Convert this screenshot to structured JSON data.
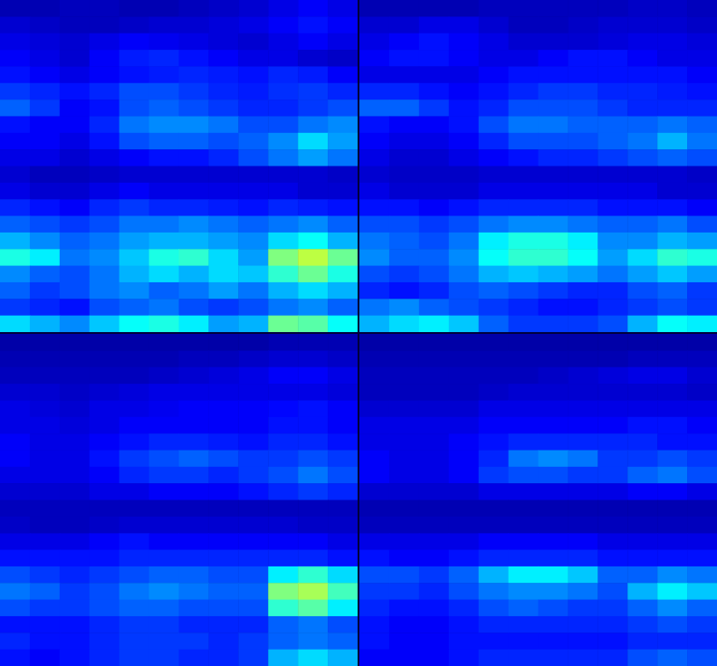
{
  "chart_data": [
    {
      "type": "heatmap",
      "tick_labels": false,
      "color_range": [
        0,
        1
      ],
      "cells": [
        [
          0.05,
          0.05,
          0.06,
          0.06,
          0.05,
          0.05,
          0.06,
          0.07,
          0.08,
          0.1,
          0.12,
          0.1
        ],
        [
          0.08,
          0.07,
          0.06,
          0.06,
          0.07,
          0.08,
          0.08,
          0.09,
          0.1,
          0.12,
          0.14,
          0.12
        ],
        [
          0.1,
          0.09,
          0.08,
          0.1,
          0.12,
          0.11,
          0.1,
          0.09,
          0.08,
          0.1,
          0.12,
          0.1
        ],
        [
          0.12,
          0.1,
          0.08,
          0.12,
          0.15,
          0.16,
          0.14,
          0.12,
          0.1,
          0.1,
          0.08,
          0.07
        ],
        [
          0.14,
          0.12,
          0.1,
          0.12,
          0.14,
          0.15,
          0.16,
          0.15,
          0.14,
          0.16,
          0.15,
          0.12
        ],
        [
          0.18,
          0.16,
          0.14,
          0.16,
          0.2,
          0.2,
          0.18,
          0.16,
          0.15,
          0.17,
          0.18,
          0.16
        ],
        [
          0.22,
          0.18,
          0.12,
          0.14,
          0.2,
          0.22,
          0.2,
          0.18,
          0.16,
          0.16,
          0.18,
          0.2
        ],
        [
          0.14,
          0.12,
          0.12,
          0.16,
          0.24,
          0.26,
          0.26,
          0.24,
          0.2,
          0.2,
          0.24,
          0.26
        ],
        [
          0.12,
          0.12,
          0.1,
          0.14,
          0.2,
          0.22,
          0.22,
          0.2,
          0.22,
          0.26,
          0.34,
          0.28
        ],
        [
          0.1,
          0.1,
          0.08,
          0.1,
          0.12,
          0.14,
          0.14,
          0.16,
          0.2,
          0.24,
          0.28,
          0.24
        ],
        [
          0.08,
          0.06,
          0.06,
          0.07,
          0.08,
          0.08,
          0.08,
          0.08,
          0.08,
          0.08,
          0.08,
          0.07
        ],
        [
          0.1,
          0.08,
          0.08,
          0.1,
          0.12,
          0.1,
          0.1,
          0.1,
          0.1,
          0.1,
          0.08,
          0.08
        ],
        [
          0.16,
          0.14,
          0.12,
          0.16,
          0.18,
          0.16,
          0.16,
          0.15,
          0.14,
          0.16,
          0.15,
          0.14
        ],
        [
          0.22,
          0.2,
          0.18,
          0.2,
          0.24,
          0.24,
          0.26,
          0.24,
          0.22,
          0.24,
          0.26,
          0.22
        ],
        [
          0.3,
          0.26,
          0.22,
          0.24,
          0.28,
          0.3,
          0.3,
          0.28,
          0.26,
          0.34,
          0.38,
          0.3
        ],
        [
          0.4,
          0.36,
          0.24,
          0.26,
          0.32,
          0.4,
          0.42,
          0.34,
          0.28,
          0.5,
          0.56,
          0.48
        ],
        [
          0.26,
          0.22,
          0.2,
          0.24,
          0.3,
          0.34,
          0.3,
          0.34,
          0.32,
          0.42,
          0.48,
          0.4
        ],
        [
          0.22,
          0.18,
          0.2,
          0.24,
          0.26,
          0.22,
          0.24,
          0.28,
          0.24,
          0.3,
          0.34,
          0.3
        ],
        [
          0.18,
          0.16,
          0.14,
          0.2,
          0.22,
          0.24,
          0.2,
          0.18,
          0.2,
          0.24,
          0.26,
          0.22
        ],
        [
          0.34,
          0.3,
          0.26,
          0.32,
          0.38,
          0.4,
          0.36,
          0.28,
          0.3,
          0.48,
          0.46,
          0.38
        ]
      ]
    },
    {
      "type": "heatmap",
      "tick_labels": false,
      "color_range": [
        0,
        1
      ],
      "cells": [
        [
          0.05,
          0.05,
          0.05,
          0.05,
          0.06,
          0.06,
          0.06,
          0.06,
          0.06,
          0.07,
          0.07,
          0.06
        ],
        [
          0.08,
          0.08,
          0.1,
          0.1,
          0.08,
          0.06,
          0.06,
          0.07,
          0.08,
          0.08,
          0.08,
          0.07
        ],
        [
          0.1,
          0.12,
          0.14,
          0.12,
          0.1,
          0.08,
          0.08,
          0.08,
          0.09,
          0.1,
          0.1,
          0.09
        ],
        [
          0.12,
          0.14,
          0.14,
          0.12,
          0.1,
          0.1,
          0.12,
          0.14,
          0.14,
          0.12,
          0.1,
          0.1
        ],
        [
          0.1,
          0.1,
          0.1,
          0.1,
          0.12,
          0.14,
          0.14,
          0.14,
          0.14,
          0.14,
          0.14,
          0.12
        ],
        [
          0.16,
          0.16,
          0.14,
          0.12,
          0.14,
          0.16,
          0.18,
          0.18,
          0.16,
          0.16,
          0.15,
          0.14
        ],
        [
          0.22,
          0.22,
          0.18,
          0.14,
          0.16,
          0.2,
          0.2,
          0.2,
          0.18,
          0.16,
          0.16,
          0.16
        ],
        [
          0.14,
          0.12,
          0.12,
          0.14,
          0.2,
          0.24,
          0.24,
          0.22,
          0.22,
          0.22,
          0.24,
          0.22
        ],
        [
          0.12,
          0.1,
          0.1,
          0.12,
          0.16,
          0.2,
          0.2,
          0.2,
          0.22,
          0.24,
          0.3,
          0.24
        ],
        [
          0.1,
          0.08,
          0.08,
          0.1,
          0.12,
          0.14,
          0.16,
          0.16,
          0.18,
          0.2,
          0.22,
          0.2
        ],
        [
          0.08,
          0.07,
          0.07,
          0.07,
          0.08,
          0.08,
          0.08,
          0.08,
          0.08,
          0.08,
          0.08,
          0.07
        ],
        [
          0.1,
          0.08,
          0.08,
          0.08,
          0.1,
          0.1,
          0.1,
          0.1,
          0.1,
          0.1,
          0.08,
          0.08
        ],
        [
          0.14,
          0.14,
          0.12,
          0.14,
          0.16,
          0.16,
          0.16,
          0.16,
          0.14,
          0.14,
          0.14,
          0.12
        ],
        [
          0.2,
          0.2,
          0.18,
          0.2,
          0.24,
          0.26,
          0.26,
          0.24,
          0.22,
          0.22,
          0.24,
          0.2
        ],
        [
          0.24,
          0.22,
          0.2,
          0.24,
          0.36,
          0.4,
          0.4,
          0.36,
          0.26,
          0.26,
          0.3,
          0.28
        ],
        [
          0.26,
          0.22,
          0.22,
          0.26,
          0.38,
          0.42,
          0.42,
          0.38,
          0.28,
          0.34,
          0.42,
          0.4
        ],
        [
          0.2,
          0.18,
          0.2,
          0.24,
          0.3,
          0.32,
          0.3,
          0.28,
          0.24,
          0.28,
          0.32,
          0.28
        ],
        [
          0.16,
          0.14,
          0.16,
          0.2,
          0.22,
          0.2,
          0.18,
          0.16,
          0.16,
          0.2,
          0.22,
          0.18
        ],
        [
          0.24,
          0.26,
          0.22,
          0.2,
          0.18,
          0.16,
          0.14,
          0.14,
          0.16,
          0.18,
          0.2,
          0.18
        ],
        [
          0.3,
          0.34,
          0.36,
          0.32,
          0.22,
          0.18,
          0.18,
          0.18,
          0.2,
          0.3,
          0.38,
          0.36
        ]
      ]
    },
    {
      "type": "heatmap",
      "tick_labels": false,
      "color_range": [
        0,
        1
      ],
      "cells": [
        [
          0.04,
          0.04,
          0.04,
          0.04,
          0.04,
          0.04,
          0.04,
          0.04,
          0.04,
          0.05,
          0.05,
          0.05
        ],
        [
          0.05,
          0.05,
          0.05,
          0.05,
          0.05,
          0.05,
          0.06,
          0.06,
          0.07,
          0.08,
          0.08,
          0.07
        ],
        [
          0.06,
          0.06,
          0.06,
          0.06,
          0.06,
          0.07,
          0.08,
          0.09,
          0.1,
          0.12,
          0.12,
          0.1
        ],
        [
          0.08,
          0.08,
          0.07,
          0.08,
          0.09,
          0.1,
          0.1,
          0.1,
          0.1,
          0.1,
          0.1,
          0.09
        ],
        [
          0.1,
          0.09,
          0.08,
          0.1,
          0.1,
          0.11,
          0.12,
          0.12,
          0.12,
          0.13,
          0.14,
          0.12
        ],
        [
          0.1,
          0.1,
          0.09,
          0.1,
          0.12,
          0.12,
          0.12,
          0.12,
          0.12,
          0.14,
          0.14,
          0.12
        ],
        [
          0.12,
          0.1,
          0.1,
          0.12,
          0.14,
          0.16,
          0.16,
          0.15,
          0.14,
          0.16,
          0.16,
          0.14
        ],
        [
          0.12,
          0.1,
          0.1,
          0.14,
          0.18,
          0.2,
          0.22,
          0.2,
          0.18,
          0.18,
          0.2,
          0.18
        ],
        [
          0.1,
          0.1,
          0.1,
          0.12,
          0.16,
          0.18,
          0.18,
          0.16,
          0.18,
          0.2,
          0.24,
          0.2
        ],
        [
          0.08,
          0.08,
          0.08,
          0.1,
          0.1,
          0.12,
          0.12,
          0.12,
          0.14,
          0.16,
          0.18,
          0.16
        ],
        [
          0.06,
          0.06,
          0.06,
          0.06,
          0.06,
          0.06,
          0.06,
          0.06,
          0.06,
          0.06,
          0.06,
          0.06
        ],
        [
          0.07,
          0.06,
          0.06,
          0.07,
          0.08,
          0.08,
          0.08,
          0.08,
          0.08,
          0.08,
          0.07,
          0.07
        ],
        [
          0.1,
          0.1,
          0.1,
          0.12,
          0.14,
          0.12,
          0.12,
          0.12,
          0.12,
          0.12,
          0.12,
          0.1
        ],
        [
          0.14,
          0.14,
          0.14,
          0.14,
          0.16,
          0.16,
          0.16,
          0.16,
          0.16,
          0.16,
          0.16,
          0.14
        ],
        [
          0.2,
          0.18,
          0.16,
          0.18,
          0.2,
          0.22,
          0.22,
          0.2,
          0.2,
          0.36,
          0.42,
          0.34
        ],
        [
          0.24,
          0.22,
          0.18,
          0.2,
          0.24,
          0.26,
          0.24,
          0.22,
          0.22,
          0.5,
          0.54,
          0.44
        ],
        [
          0.2,
          0.18,
          0.18,
          0.2,
          0.22,
          0.22,
          0.2,
          0.2,
          0.2,
          0.42,
          0.46,
          0.36
        ],
        [
          0.14,
          0.14,
          0.14,
          0.16,
          0.18,
          0.18,
          0.16,
          0.16,
          0.16,
          0.22,
          0.24,
          0.2
        ],
        [
          0.16,
          0.14,
          0.14,
          0.16,
          0.18,
          0.18,
          0.18,
          0.16,
          0.18,
          0.22,
          0.24,
          0.22
        ],
        [
          0.14,
          0.12,
          0.14,
          0.16,
          0.18,
          0.18,
          0.16,
          0.16,
          0.18,
          0.3,
          0.34,
          0.3
        ]
      ]
    },
    {
      "type": "heatmap",
      "tick_labels": false,
      "color_range": [
        0,
        1
      ],
      "cells": [
        [
          0.04,
          0.04,
          0.04,
          0.04,
          0.04,
          0.04,
          0.04,
          0.04,
          0.04,
          0.04,
          0.04,
          0.04
        ],
        [
          0.05,
          0.05,
          0.05,
          0.05,
          0.05,
          0.05,
          0.05,
          0.05,
          0.05,
          0.06,
          0.06,
          0.06
        ],
        [
          0.06,
          0.06,
          0.06,
          0.06,
          0.06,
          0.06,
          0.07,
          0.08,
          0.09,
          0.1,
          0.1,
          0.08
        ],
        [
          0.06,
          0.06,
          0.06,
          0.06,
          0.07,
          0.08,
          0.08,
          0.08,
          0.08,
          0.08,
          0.08,
          0.07
        ],
        [
          0.08,
          0.08,
          0.08,
          0.08,
          0.1,
          0.1,
          0.1,
          0.1,
          0.1,
          0.1,
          0.1,
          0.1
        ],
        [
          0.1,
          0.1,
          0.1,
          0.1,
          0.12,
          0.12,
          0.12,
          0.12,
          0.12,
          0.14,
          0.14,
          0.12
        ],
        [
          0.1,
          0.1,
          0.1,
          0.12,
          0.14,
          0.16,
          0.16,
          0.16,
          0.16,
          0.16,
          0.14,
          0.14
        ],
        [
          0.12,
          0.1,
          0.1,
          0.12,
          0.16,
          0.24,
          0.26,
          0.24,
          0.18,
          0.18,
          0.2,
          0.18
        ],
        [
          0.12,
          0.1,
          0.1,
          0.12,
          0.18,
          0.2,
          0.2,
          0.18,
          0.18,
          0.22,
          0.24,
          0.2
        ],
        [
          0.08,
          0.08,
          0.08,
          0.08,
          0.1,
          0.1,
          0.1,
          0.1,
          0.1,
          0.12,
          0.12,
          0.1
        ],
        [
          0.05,
          0.05,
          0.05,
          0.05,
          0.05,
          0.05,
          0.05,
          0.05,
          0.05,
          0.05,
          0.05,
          0.05
        ],
        [
          0.06,
          0.06,
          0.06,
          0.06,
          0.06,
          0.06,
          0.06,
          0.06,
          0.06,
          0.06,
          0.06,
          0.06
        ],
        [
          0.1,
          0.1,
          0.1,
          0.1,
          0.12,
          0.12,
          0.12,
          0.12,
          0.1,
          0.1,
          0.1,
          0.1
        ],
        [
          0.14,
          0.12,
          0.12,
          0.14,
          0.16,
          0.16,
          0.16,
          0.16,
          0.14,
          0.14,
          0.14,
          0.14
        ],
        [
          0.2,
          0.2,
          0.18,
          0.22,
          0.3,
          0.36,
          0.36,
          0.32,
          0.22,
          0.22,
          0.26,
          0.24
        ],
        [
          0.18,
          0.18,
          0.16,
          0.2,
          0.24,
          0.26,
          0.26,
          0.24,
          0.2,
          0.3,
          0.36,
          0.32
        ],
        [
          0.16,
          0.14,
          0.14,
          0.16,
          0.2,
          0.22,
          0.2,
          0.18,
          0.18,
          0.22,
          0.26,
          0.22
        ],
        [
          0.14,
          0.12,
          0.12,
          0.14,
          0.16,
          0.16,
          0.16,
          0.16,
          0.16,
          0.18,
          0.2,
          0.18
        ],
        [
          0.14,
          0.12,
          0.12,
          0.14,
          0.14,
          0.14,
          0.14,
          0.14,
          0.14,
          0.16,
          0.16,
          0.16
        ],
        [
          0.12,
          0.12,
          0.12,
          0.14,
          0.16,
          0.16,
          0.16,
          0.16,
          0.16,
          0.2,
          0.22,
          0.2
        ]
      ]
    }
  ]
}
